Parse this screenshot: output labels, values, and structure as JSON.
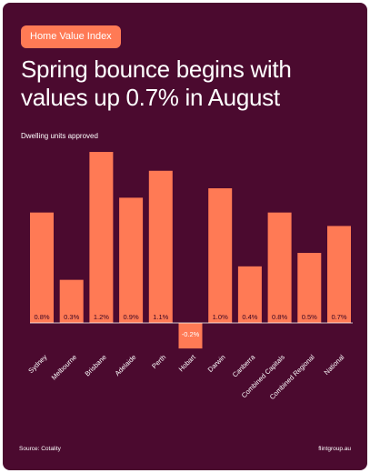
{
  "badge": "Home Value Index",
  "title": "Spring bounce begins with values up 0.7% in August",
  "footer": {
    "source": "Source: Cotality",
    "site": "flintgroup.au"
  },
  "colors": {
    "background": "#4b0a2f",
    "bar": "#ff7a55",
    "text": "#ffffff",
    "badge": "#ff7a55"
  },
  "chart_data": {
    "type": "bar",
    "ylabel": "Dwelling units approved",
    "categories": [
      "Sydney",
      "Melbourne",
      "Brisbane",
      "Adelaide",
      "Perth",
      "Hobart",
      "Darwin",
      "Canberra",
      "Combined Capitals",
      "Combined Regional",
      "National"
    ],
    "values": [
      0.8,
      0.3,
      1.2,
      0.9,
      1.1,
      -0.2,
      1.0,
      0.4,
      0.8,
      0.5,
      0.7
    ],
    "bar_heights": [
      0.82,
      0.32,
      1.27,
      0.93,
      1.13,
      -0.19,
      1.0,
      0.42,
      0.82,
      0.52,
      0.72
    ],
    "data_labels": [
      "0.8%",
      "0.3%",
      "1.2%",
      "0.9%",
      "1.1%",
      "-0.2%",
      "1.0%",
      "0.4%",
      "0.8%",
      "0.5%",
      "0.7%"
    ],
    "legend": "none",
    "grid": false
  }
}
